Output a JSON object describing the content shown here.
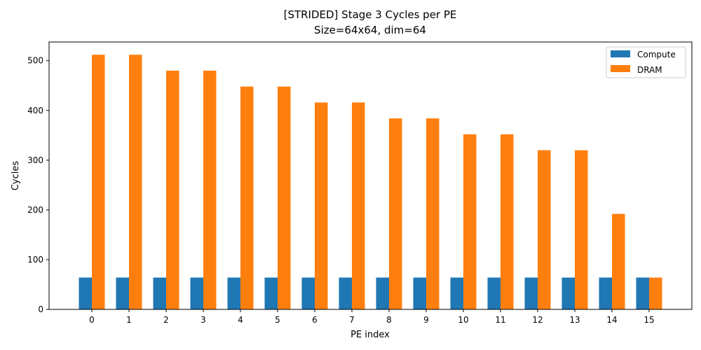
{
  "chart_data": {
    "type": "bar",
    "title": "[STRIDED] Stage 3 Cycles per PE",
    "subtitle": "Size=64x64, dim=64",
    "xlabel": "PE index",
    "ylabel": "Cycles",
    "categories": [
      "0",
      "1",
      "2",
      "3",
      "4",
      "5",
      "6",
      "7",
      "8",
      "9",
      "10",
      "11",
      "12",
      "13",
      "14",
      "15"
    ],
    "series": [
      {
        "name": "Compute",
        "color": "#1f77b4",
        "values": [
          64,
          64,
          64,
          64,
          64,
          64,
          64,
          64,
          64,
          64,
          64,
          64,
          64,
          64,
          64,
          64
        ]
      },
      {
        "name": "DRAM",
        "color": "#ff7f0e",
        "values": [
          512,
          512,
          480,
          480,
          448,
          448,
          416,
          416,
          384,
          384,
          352,
          352,
          320,
          320,
          192,
          64
        ]
      }
    ],
    "yticks": [
      0,
      100,
      200,
      300,
      400,
      500
    ],
    "ylim": [
      0,
      537.6
    ],
    "grid": false,
    "legend": "top-right"
  }
}
